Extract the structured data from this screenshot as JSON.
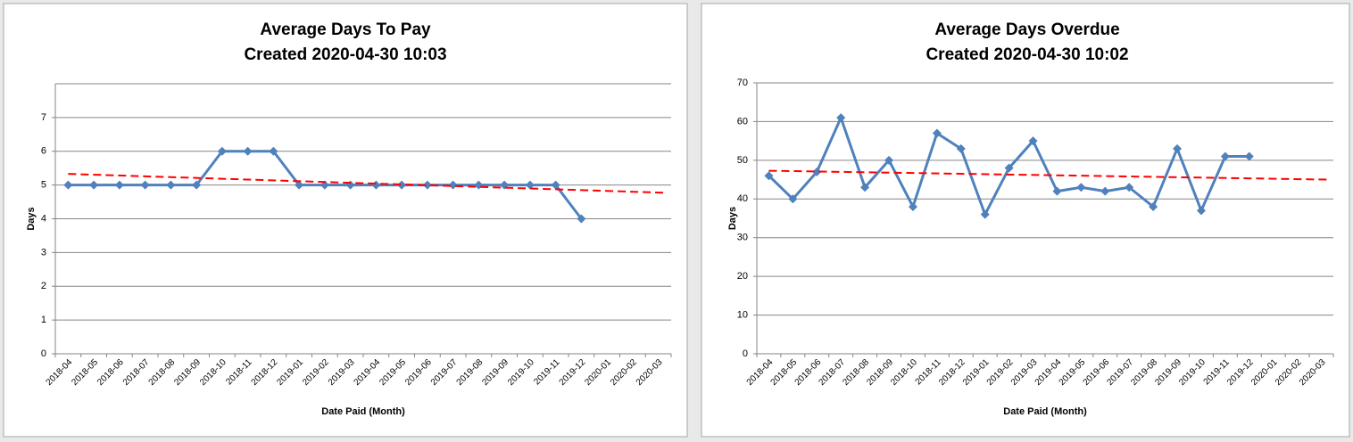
{
  "chart_data": [
    {
      "type": "line",
      "title": "Average Days To Pay",
      "subtitle": "Created 2020-04-30  10:03",
      "x_label": "Date Paid (Month)",
      "y_label": "Days",
      "categories": [
        "2018-04",
        "2018-05",
        "2018-06",
        "2018-07",
        "2018-08",
        "2018-09",
        "2018-10",
        "2018-11",
        "2018-12",
        "2019-01",
        "2019-02",
        "2019-03",
        "2019-04",
        "2019-05",
        "2019-06",
        "2019-07",
        "2019-08",
        "2019-09",
        "2019-10",
        "2019-11",
        "2019-12",
        "2020-01",
        "2020-02",
        "2020-03"
      ],
      "series": [
        {
          "color": "#4f81bd",
          "values": [
            5,
            5,
            5,
            5,
            5,
            5,
            6,
            6,
            6,
            5,
            5,
            5,
            5,
            5,
            5,
            5,
            5,
            5,
            5,
            5,
            4,
            null,
            null,
            null
          ]
        }
      ],
      "trend": {
        "color": "#ff0000",
        "values": [
          5.33,
          4.77
        ]
      },
      "ylim": [
        0,
        8
      ],
      "yticks": [
        0,
        1,
        2,
        3,
        4,
        5,
        6,
        7
      ],
      "grid": true
    },
    {
      "type": "line",
      "title": "Average Days Overdue",
      "subtitle": "Created 2020-04-30  10:02",
      "x_label": "Date Paid (Month)",
      "y_label": "Days",
      "categories": [
        "2018-04",
        "2018-05",
        "2018-06",
        "2018-07",
        "2018-08",
        "2018-09",
        "2018-10",
        "2018-11",
        "2018-12",
        "2019-01",
        "2019-02",
        "2019-03",
        "2019-04",
        "2019-05",
        "2019-06",
        "2019-07",
        "2019-08",
        "2019-09",
        "2019-10",
        "2019-11",
        "2019-12",
        "2020-01",
        "2020-02",
        "2020-03"
      ],
      "series": [
        {
          "color": "#4f81bd",
          "values": [
            46,
            40,
            47,
            61,
            43,
            50,
            38,
            57,
            53,
            36,
            48,
            55,
            42,
            43,
            42,
            43,
            38,
            53,
            37,
            51,
            51,
            null,
            null,
            null
          ]
        }
      ],
      "trend": {
        "color": "#ff0000",
        "values": [
          47.3,
          45.0
        ]
      },
      "ylim": [
        0,
        70
      ],
      "yticks": [
        0,
        10,
        20,
        30,
        40,
        50,
        60,
        70
      ],
      "grid": true
    }
  ]
}
